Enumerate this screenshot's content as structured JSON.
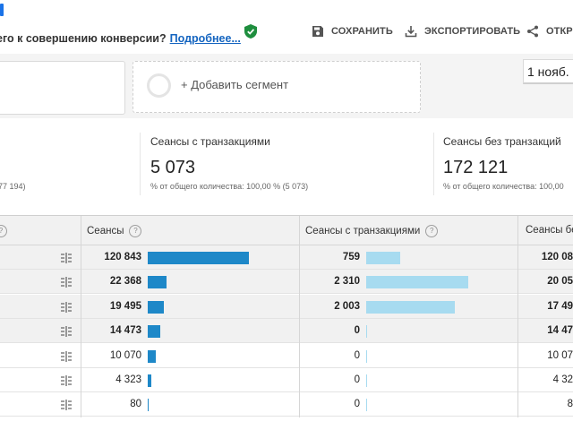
{
  "banner": {
    "text": "его к совершению конверсии?",
    "link": "Подробнее..."
  },
  "toolbar": {
    "save_label": "СОХРАНИТЬ",
    "export_label": "ЭКСПОРТИРОВАТЬ",
    "share_label": "ОТКР"
  },
  "segments": {
    "add_label": "+ Добавить сегмент"
  },
  "date_range": {
    "label": "1 нояб."
  },
  "summary": [
    {
      "title": "",
      "value": "",
      "note": "77 194)"
    },
    {
      "title": "Сеансы с транзакциями",
      "value": "5 073",
      "note": "% от общего количества: 100,00 % (5 073)"
    },
    {
      "title": "Сеансы без транзакций",
      "value": "172 121",
      "note": "% от общего количества: 100,00"
    }
  ],
  "table": {
    "headers": [
      "Сеансы",
      "Сеансы с транзакциями",
      "Сеансы бе"
    ],
    "rows": [
      {
        "sessions": "120 843",
        "with_tx": "759",
        "without_tx": "120 08",
        "sessions_pct": 1.0,
        "tx_pct": 0.33,
        "bold": true
      },
      {
        "sessions": "22 368",
        "with_tx": "2 310",
        "without_tx": "20 05",
        "sessions_pct": 0.185,
        "tx_pct": 1.0,
        "bold": true
      },
      {
        "sessions": "19 495",
        "with_tx": "2 003",
        "without_tx": "17 49",
        "sessions_pct": 0.161,
        "tx_pct": 0.867,
        "bold": true
      },
      {
        "sessions": "14 473",
        "with_tx": "0",
        "without_tx": "14 47",
        "sessions_pct": 0.12,
        "tx_pct": 0.0,
        "bold": true
      },
      {
        "sessions": "10 070",
        "with_tx": "0",
        "without_tx": "10 07",
        "sessions_pct": 0.083,
        "tx_pct": 0.0,
        "bold": false
      },
      {
        "sessions": "4 323",
        "with_tx": "0",
        "without_tx": "4 32",
        "sessions_pct": 0.036,
        "tx_pct": 0.0,
        "bold": false
      },
      {
        "sessions": "80",
        "with_tx": "0",
        "without_tx": "8",
        "sessions_pct": 0.0007,
        "tx_pct": 0.0,
        "bold": false
      }
    ]
  },
  "colors": {
    "bar_dark": "#1e88c8",
    "bar_light": "#a7dbf0",
    "link": "#1565c0",
    "shield": "#1e8e3e"
  }
}
